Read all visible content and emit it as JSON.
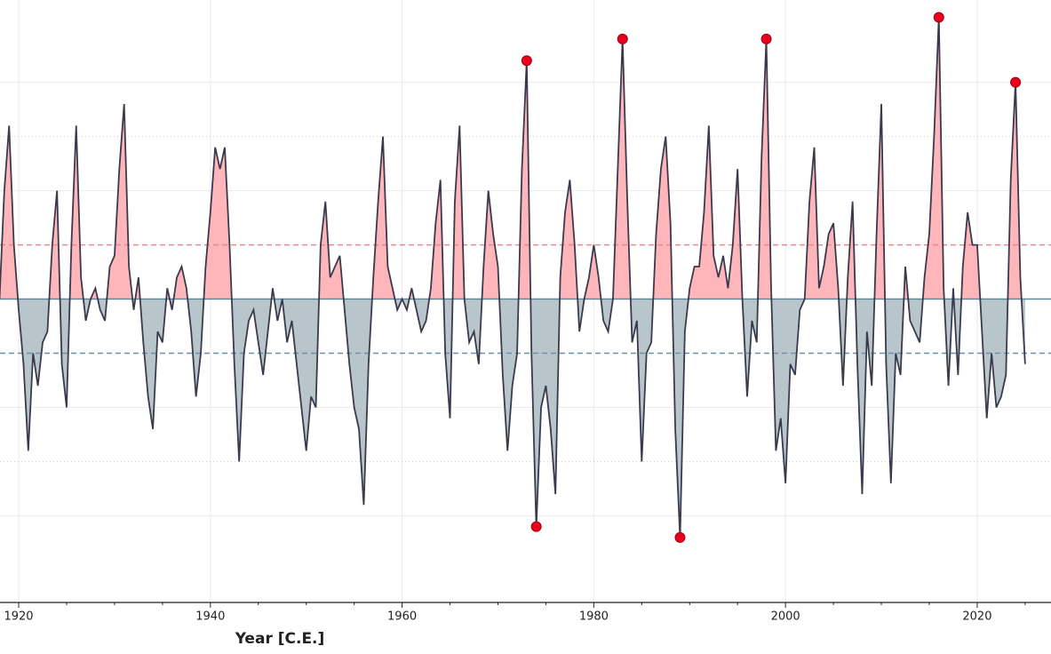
{
  "chart_data": {
    "type": "line",
    "xlabel": "Year [C.E.]",
    "x": [
      1918.0,
      1918.5,
      1919.0,
      1919.5,
      1920.0,
      1920.5,
      1921.0,
      1921.5,
      1922.0,
      1922.5,
      1923.0,
      1923.5,
      1924.0,
      1924.5,
      1925.0,
      1925.5,
      1926.0,
      1926.5,
      1927.0,
      1927.5,
      1928.0,
      1928.5,
      1929.0,
      1929.5,
      1930.0,
      1930.5,
      1931.0,
      1931.5,
      1932.0,
      1932.5,
      1933.0,
      1933.5,
      1934.0,
      1934.5,
      1935.0,
      1935.5,
      1936.0,
      1936.5,
      1937.0,
      1937.5,
      1938.0,
      1938.5,
      1939.0,
      1939.5,
      1940.0,
      1940.5,
      1941.0,
      1941.5,
      1942.0,
      1942.5,
      1943.0,
      1943.5,
      1944.0,
      1944.5,
      1945.0,
      1945.5,
      1946.0,
      1946.5,
      1947.0,
      1947.5,
      1948.0,
      1948.5,
      1949.0,
      1949.5,
      1950.0,
      1950.5,
      1951.0,
      1951.5,
      1952.0,
      1952.5,
      1953.0,
      1953.5,
      1954.0,
      1954.5,
      1955.0,
      1955.5,
      1956.0,
      1956.5,
      1957.0,
      1957.5,
      1958.0,
      1958.5,
      1959.0,
      1959.5,
      1960.0,
      1960.5,
      1961.0,
      1961.5,
      1962.0,
      1962.5,
      1963.0,
      1963.5,
      1964.0,
      1964.5,
      1965.0,
      1965.5,
      1966.0,
      1966.5,
      1967.0,
      1967.5,
      1968.0,
      1968.5,
      1969.0,
      1969.5,
      1970.0,
      1970.5,
      1971.0,
      1971.5,
      1972.0,
      1972.5,
      1973.0,
      1973.5,
      1974.0,
      1974.5,
      1975.0,
      1975.5,
      1976.0,
      1976.5,
      1977.0,
      1977.5,
      1978.0,
      1978.5,
      1979.0,
      1979.5,
      1980.0,
      1980.5,
      1981.0,
      1981.5,
      1982.0,
      1982.5,
      1983.0,
      1983.5,
      1984.0,
      1984.5,
      1985.0,
      1985.5,
      1986.0,
      1986.5,
      1987.0,
      1987.5,
      1988.0,
      1988.5,
      1989.0,
      1989.5,
      1990.0,
      1990.5,
      1991.0,
      1991.5,
      1992.0,
      1992.5,
      1993.0,
      1993.5,
      1994.0,
      1994.5,
      1995.0,
      1995.5,
      1996.0,
      1996.5,
      1997.0,
      1997.5,
      1998.0,
      1998.5,
      1999.0,
      1999.5,
      2000.0,
      2000.5,
      2001.0,
      2001.5,
      2002.0,
      2002.5,
      2003.0,
      2003.5,
      2004.0,
      2004.5,
      2005.0,
      2005.5,
      2006.0,
      2006.5,
      2007.0,
      2007.5,
      2008.0,
      2008.5,
      2009.0,
      2009.5,
      2010.0,
      2010.5,
      2011.0,
      2011.5,
      2012.0,
      2012.5,
      2013.0,
      2013.5,
      2014.0,
      2014.5,
      2015.0,
      2015.5,
      2016.0,
      2016.5,
      2017.0,
      2017.5,
      2018.0,
      2018.5,
      2019.0,
      2019.5,
      2020.0,
      2020.5,
      2021.0,
      2021.5,
      2022.0,
      2022.5,
      2023.0,
      2023.5,
      2024.0,
      2024.5,
      2025.0
    ],
    "values": [
      0.0,
      1.0,
      1.6,
      0.5,
      -0.1,
      -0.6,
      -1.4,
      -0.5,
      -0.8,
      -0.4,
      -0.3,
      0.5,
      1.0,
      -0.6,
      -1.0,
      0.5,
      1.6,
      0.2,
      -0.2,
      0.0,
      0.1,
      -0.1,
      -0.2,
      0.3,
      0.4,
      1.2,
      1.8,
      0.3,
      -0.1,
      0.2,
      -0.4,
      -0.9,
      -1.2,
      -0.3,
      -0.4,
      0.1,
      -0.1,
      0.2,
      0.3,
      0.1,
      -0.3,
      -0.9,
      -0.5,
      0.3,
      0.8,
      1.4,
      1.2,
      1.4,
      0.5,
      -0.6,
      -1.5,
      -0.5,
      -0.2,
      -0.1,
      -0.4,
      -0.7,
      -0.3,
      0.1,
      -0.2,
      0.0,
      -0.4,
      -0.2,
      -0.6,
      -1.0,
      -1.4,
      -0.9,
      -1.0,
      0.5,
      0.9,
      0.2,
      0.3,
      0.4,
      -0.1,
      -0.6,
      -1.0,
      -1.2,
      -1.9,
      -0.6,
      0.2,
      0.9,
      1.5,
      0.3,
      0.1,
      -0.1,
      0.0,
      -0.1,
      0.1,
      -0.1,
      -0.3,
      -0.2,
      0.1,
      0.7,
      1.1,
      -0.5,
      -1.1,
      0.9,
      1.6,
      0.0,
      -0.4,
      -0.3,
      -0.6,
      0.3,
      1.0,
      0.6,
      0.3,
      -0.7,
      -1.4,
      -0.8,
      -0.5,
      1.2,
      2.2,
      -0.5,
      -2.1,
      -1.0,
      -0.8,
      -1.2,
      -1.8,
      0.2,
      0.8,
      1.1,
      0.5,
      -0.3,
      0.0,
      0.2,
      0.5,
      0.2,
      -0.2,
      -0.3,
      0.0,
      1.2,
      2.4,
      0.9,
      -0.4,
      -0.2,
      -1.5,
      -0.5,
      -0.4,
      0.6,
      1.2,
      1.5,
      0.7,
      -1.2,
      -2.2,
      -0.3,
      0.1,
      0.3,
      0.3,
      0.8,
      1.6,
      0.4,
      0.2,
      0.4,
      0.1,
      0.5,
      1.2,
      0.0,
      -0.9,
      -0.2,
      -0.4,
      1.3,
      2.4,
      0.1,
      -1.4,
      -1.1,
      -1.7,
      -0.6,
      -0.7,
      -0.1,
      0.0,
      0.9,
      1.4,
      0.1,
      0.3,
      0.6,
      0.7,
      0.1,
      -0.8,
      0.2,
      0.9,
      -0.6,
      -1.8,
      -0.3,
      -0.8,
      0.6,
      1.8,
      -0.6,
      -1.7,
      -0.5,
      -0.7,
      0.3,
      -0.2,
      -0.3,
      -0.4,
      0.2,
      0.6,
      1.5,
      2.6,
      0.1,
      -0.8,
      0.1,
      -0.7,
      0.3,
      0.8,
      0.5,
      0.5,
      -0.3,
      -1.1,
      -0.5,
      -1.0,
      -0.9,
      -0.7,
      1.1,
      2.0,
      0.2,
      -0.6
    ],
    "color": "#3a3a4e",
    "positive_fill": "#ffb6bb",
    "negative_fill": "#b8c6cc",
    "zero_color": "#5d8598",
    "thresholds": [
      {
        "value": 0.5,
        "color": "#e88a90"
      },
      {
        "value": -0.5,
        "color": "#6f8fa3"
      }
    ],
    "marker_threshold": 2.0,
    "marker_color": "#e8001c",
    "xlim": [
      1918.05,
      2027.7
    ],
    "ylim": [
      -2.8,
      2.76
    ],
    "xticks": [
      1920,
      1940,
      1960,
      1980,
      2000,
      2020
    ],
    "xminor_ticks": [
      1925,
      1930,
      1935,
      1945,
      1950,
      1955,
      1965,
      1970,
      1975,
      1985,
      1990,
      1995,
      2005,
      2010,
      2015,
      2025
    ],
    "yticks": [
      -2,
      -1,
      1,
      2
    ],
    "ydotted": [
      -1.5,
      1.5
    ],
    "grid": true
  }
}
